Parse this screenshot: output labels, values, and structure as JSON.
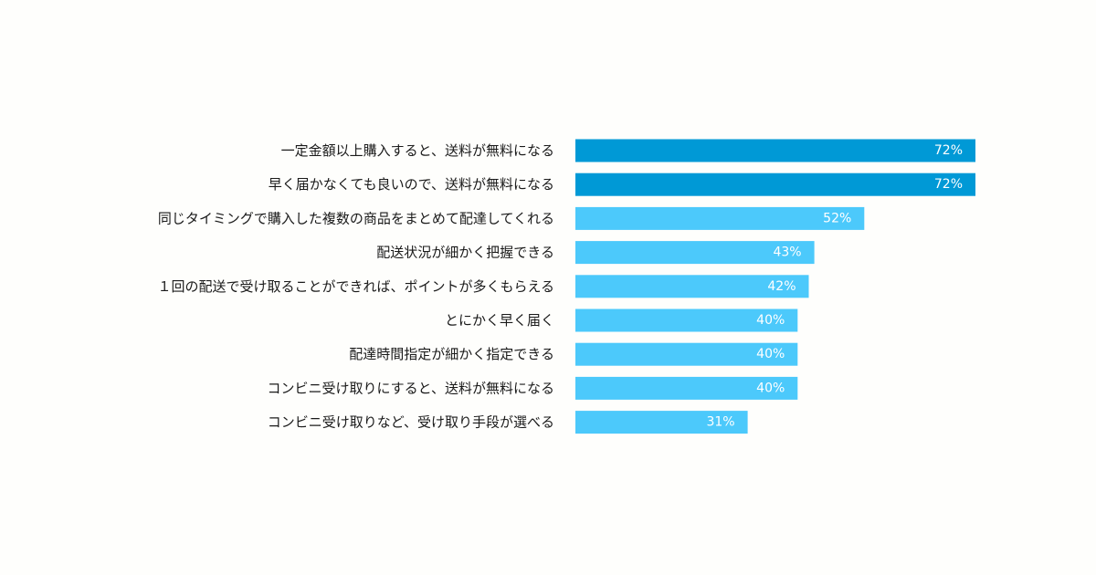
{
  "chart_data": {
    "type": "bar",
    "orientation": "horizontal",
    "categories": [
      "一定金額以上購入すると、送料が無料になる",
      "早く届かなくても良いので、送料が無料になる",
      "同じタイミングで購入した複数の商品をまとめて配達してくれる",
      "配送状況が細かく把握できる",
      "１回の配送で受け取ることができれば、ポイントが多くもらえる",
      "とにかく早く届く",
      "配達時間指定が細かく指定できる",
      "コンビニ受け取りにすると、送料が無料になる",
      "コンビニ受け取りなど、受け取り手段が選べる"
    ],
    "values": [
      72,
      72,
      52,
      43,
      42,
      40,
      40,
      40,
      31
    ],
    "value_labels": [
      "72%",
      "72%",
      "52%",
      "43%",
      "42%",
      "40%",
      "40%",
      "40%",
      "31%"
    ],
    "unit": "%",
    "xlim": [
      0,
      72
    ],
    "grid": false,
    "legend": "none",
    "colors": {
      "highlight": "#0099d6",
      "default": "#4cc9fb",
      "label_text": "#1a1a1a",
      "value_text": "#ffffff"
    },
    "highlight_count": 2
  }
}
